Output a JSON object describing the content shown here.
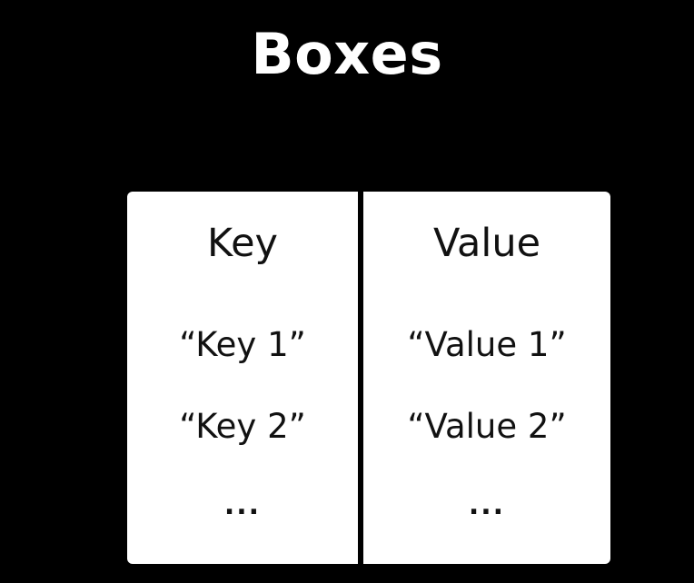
{
  "title": "Boxes",
  "columns": [
    {
      "header": "Key",
      "entries": [
        "“Key 1”",
        "“Key 2”"
      ],
      "ellipsis": "..."
    },
    {
      "header": "Value",
      "entries": [
        "“Value 1”",
        "“Value 2”"
      ],
      "ellipsis": "..."
    }
  ],
  "colors": {
    "background": "#000000",
    "box": "#ffffff",
    "text": "#111111",
    "title": "#ffffff"
  }
}
